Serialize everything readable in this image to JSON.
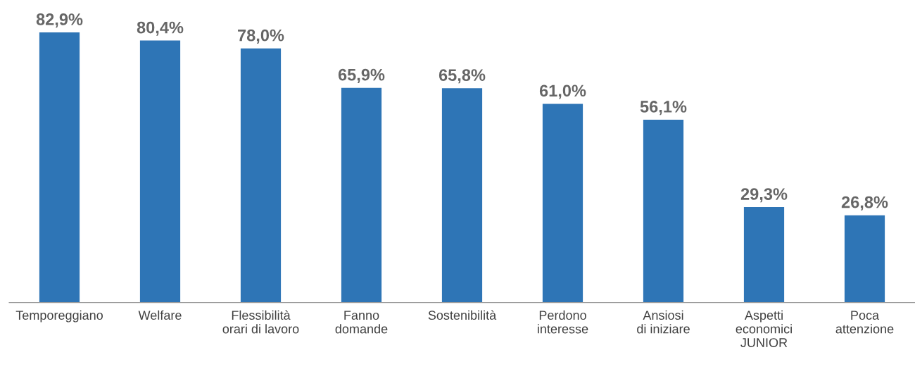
{
  "chart_data": {
    "type": "bar",
    "categories": [
      "Temporeggiano",
      "Welfare",
      "Flessibilità\norari di lavoro",
      "Fanno\ndomande",
      "Sostenibilità",
      "Perdono\ninteresse",
      "Ansiosi\ndi iniziare",
      "Aspetti\neconomici\nJUNIOR",
      "Poca\nattenzione"
    ],
    "values": [
      82.9,
      80.4,
      78.0,
      65.9,
      65.8,
      61.0,
      56.1,
      29.3,
      26.8
    ],
    "value_labels": [
      "82,9%",
      "80,4%",
      "78,0%",
      "65,9%",
      "65,8%",
      "61,0%",
      "56,1%",
      "29,3%",
      "26,8%"
    ],
    "color": "#2e75b6",
    "grid": false,
    "legend": false
  }
}
